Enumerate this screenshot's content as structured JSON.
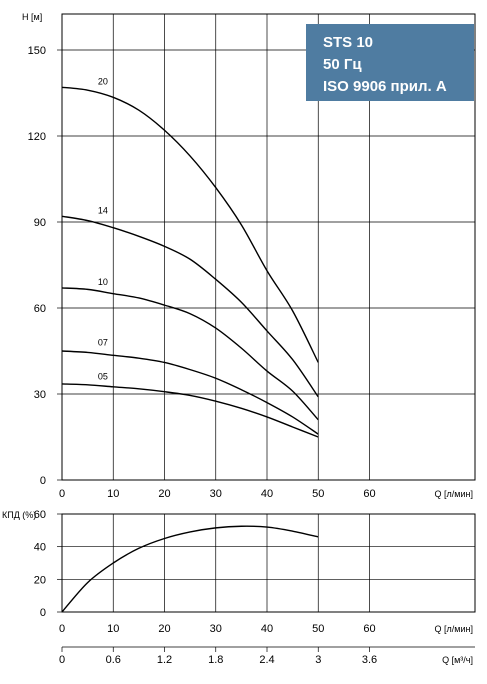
{
  "chart_data": [
    {
      "type": "line",
      "title": [
        "STS 10",
        "50 Гц",
        "ISO 9906 прил. A"
      ],
      "xlabel": "Q [л/мин]",
      "ylabel": "H [м]",
      "xlim": [
        0,
        80
      ],
      "ylim": [
        0,
        160
      ],
      "xticks": [
        0,
        10,
        20,
        30,
        40,
        50,
        60
      ],
      "yticks": [
        0,
        30,
        60,
        90,
        120,
        150
      ],
      "grid": true,
      "series": [
        {
          "name": "20",
          "label_at": [
            7,
            138
          ],
          "x": [
            0,
            5,
            10,
            15,
            20,
            25,
            30,
            35,
            40,
            45,
            50
          ],
          "y": [
            137,
            136,
            133.5,
            129,
            122,
            113,
            102,
            89,
            73,
            59,
            41
          ]
        },
        {
          "name": "14",
          "label_at": [
            7,
            93
          ],
          "x": [
            0,
            5,
            10,
            15,
            20,
            25,
            30,
            35,
            40,
            45,
            50
          ],
          "y": [
            92,
            90.5,
            88,
            85,
            81.5,
            77,
            70,
            62,
            52,
            42,
            29
          ]
        },
        {
          "name": "10",
          "label_at": [
            7,
            68
          ],
          "x": [
            0,
            5,
            10,
            15,
            20,
            25,
            30,
            35,
            40,
            45,
            50
          ],
          "y": [
            67,
            66.5,
            65,
            63.5,
            61,
            58,
            53,
            46,
            38,
            31,
            21
          ]
        },
        {
          "name": "07",
          "label_at": [
            7,
            47
          ],
          "x": [
            0,
            5,
            10,
            15,
            20,
            25,
            30,
            35,
            40,
            45,
            50
          ],
          "y": [
            45,
            44.5,
            43.5,
            42.5,
            41,
            38.5,
            35.5,
            31.5,
            27,
            22,
            16
          ]
        },
        {
          "name": "05",
          "label_at": [
            7,
            35
          ],
          "x": [
            0,
            5,
            10,
            15,
            20,
            25,
            30,
            35,
            40,
            45,
            50
          ],
          "y": [
            33.5,
            33.2,
            32.5,
            31.8,
            30.8,
            29.5,
            27.5,
            25,
            22,
            18.5,
            15
          ]
        }
      ]
    },
    {
      "type": "line",
      "xlabel": "Q [л/мин]",
      "ylabel": "КПД (%)",
      "xlim": [
        0,
        80
      ],
      "ylim": [
        0,
        60
      ],
      "xticks": [
        0,
        10,
        20,
        30,
        40,
        50,
        60
      ],
      "yticks": [
        0,
        20,
        40,
        60
      ],
      "grid": true,
      "series": [
        {
          "x": [
            0,
            5,
            10,
            15,
            20,
            25,
            30,
            35,
            40,
            45,
            50
          ],
          "y": [
            0,
            18,
            30,
            39,
            45,
            49,
            51.5,
            52.5,
            52,
            49.5,
            46
          ]
        }
      ]
    }
  ],
  "secondary_axis": {
    "label": "Q [м³/ч]",
    "ticks": [
      {
        "value": 0,
        "label": "0"
      },
      {
        "value": 0.6,
        "label": "0.6"
      },
      {
        "value": 1.2,
        "label": "1.2"
      },
      {
        "value": 1.8,
        "label": "1.8"
      },
      {
        "value": 2.4,
        "label": "2.4"
      },
      {
        "value": 3,
        "label": "3"
      },
      {
        "value": 3.6,
        "label": "3.6"
      }
    ]
  },
  "colors": {
    "title_box": "#4f7ca1",
    "title_text": "#ffffff",
    "lines": "#000000"
  }
}
